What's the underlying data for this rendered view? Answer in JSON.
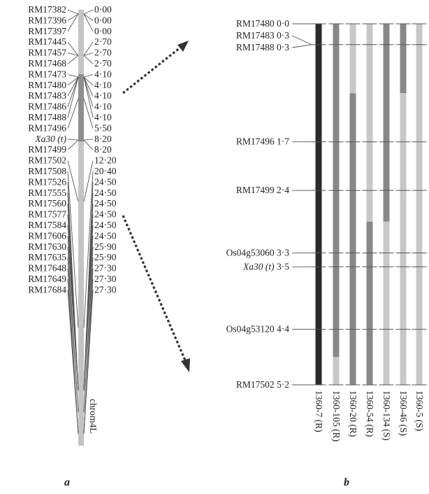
{
  "panel_a": {
    "letter": "a",
    "chrom_label": "chrom4L",
    "markers": [
      {
        "name": "RM17382",
        "pos": "0·00",
        "cm": 0.0
      },
      {
        "name": "RM17396",
        "pos": "0·00",
        "cm": 0.0
      },
      {
        "name": "RM17397",
        "pos": "0·00",
        "cm": 0.0
      },
      {
        "name": "RM17445",
        "pos": "2·70",
        "cm": 2.7
      },
      {
        "name": "RM17457",
        "pos": "2·70",
        "cm": 2.7
      },
      {
        "name": "RM17468",
        "pos": "2·70",
        "cm": 2.7
      },
      {
        "name": "RM17473",
        "pos": "4·10",
        "cm": 4.1
      },
      {
        "name": "RM17480",
        "pos": "4·10",
        "cm": 4.1
      },
      {
        "name": "RM17483",
        "pos": "4·10",
        "cm": 4.1
      },
      {
        "name": "RM17486",
        "pos": "4·10",
        "cm": 4.1
      },
      {
        "name": "RM17488",
        "pos": "4·10",
        "cm": 4.1
      },
      {
        "name": "RM17496",
        "pos": "5·50",
        "cm": 5.5
      },
      {
        "name": "Xa30 (t)",
        "pos": "8·20",
        "cm": 8.2,
        "italic": true
      },
      {
        "name": "RM17499",
        "pos": "8·20",
        "cm": 8.2
      },
      {
        "name": "RM17502",
        "pos": "12·20",
        "cm": 12.2
      },
      {
        "name": "RM17508",
        "pos": "20·40",
        "cm": 20.4
      },
      {
        "name": "RM17526",
        "pos": "24·50",
        "cm": 24.5
      },
      {
        "name": "RM17555",
        "pos": "24·50",
        "cm": 24.5
      },
      {
        "name": "RM17560",
        "pos": "24·50",
        "cm": 24.5
      },
      {
        "name": "RM17577",
        "pos": "24·50",
        "cm": 24.5
      },
      {
        "name": "RM17584",
        "pos": "24·50",
        "cm": 24.5
      },
      {
        "name": "RM17606",
        "pos": "24·50",
        "cm": 24.5
      },
      {
        "name": "RM17630",
        "pos": "25·90",
        "cm": 25.9
      },
      {
        "name": "RM17635",
        "pos": "25·90",
        "cm": 25.9
      },
      {
        "name": "RM17648",
        "pos": "27·30",
        "cm": 27.3
      },
      {
        "name": "RM17649",
        "pos": "27·30",
        "cm": 27.3
      },
      {
        "name": "RM17684",
        "pos": "27·30",
        "cm": 27.3
      }
    ],
    "highlight_range_cm": [
      4.1,
      8.2
    ]
  },
  "panel_b": {
    "letter": "b",
    "markers": [
      {
        "name": "RM17480",
        "pos": "0·0",
        "cm": 0.0
      },
      {
        "name": "RM17483",
        "pos": "0·3",
        "cm": 0.3
      },
      {
        "name": "RM17488",
        "pos": "0·3",
        "cm": 0.3
      },
      {
        "name": "RM17496",
        "pos": "1·7",
        "cm": 1.7
      },
      {
        "name": "RM17499",
        "pos": "2·4",
        "cm": 2.4
      },
      {
        "name": "Os04g53060",
        "pos": "3·3",
        "cm": 3.3
      },
      {
        "name": "Xa30 (t)",
        "pos": "3·5",
        "cm": 3.5,
        "italic": true
      },
      {
        "name": "Os04g53120",
        "pos": "4·4",
        "cm": 4.4
      },
      {
        "name": "RM17502",
        "pos": "5·2",
        "cm": 5.2
      }
    ],
    "lines": [
      {
        "label": "1360-7 (R)",
        "segments": [
          {
            "from": 0.0,
            "to": 5.2,
            "tone": "black"
          }
        ]
      },
      {
        "label": "1360-105 (R)",
        "segments": [
          {
            "from": 0.0,
            "to": 4.8,
            "tone": "dark"
          },
          {
            "from": 4.8,
            "to": 5.2,
            "tone": "light"
          }
        ]
      },
      {
        "label": "1360-20 (R)",
        "segments": [
          {
            "from": 0.0,
            "to": 1.0,
            "tone": "light"
          },
          {
            "from": 1.0,
            "to": 5.2,
            "tone": "dark"
          }
        ]
      },
      {
        "label": "1360-54 (R)",
        "segments": [
          {
            "from": 0.0,
            "to": 2.85,
            "tone": "light"
          },
          {
            "from": 2.85,
            "to": 5.2,
            "tone": "dark"
          }
        ]
      },
      {
        "label": "1360-134 (S)",
        "segments": [
          {
            "from": 0.0,
            "to": 2.85,
            "tone": "dark"
          },
          {
            "from": 2.85,
            "to": 5.2,
            "tone": "light"
          }
        ]
      },
      {
        "label": "1360-46 (S)",
        "segments": [
          {
            "from": 0.0,
            "to": 1.0,
            "tone": "dark"
          },
          {
            "from": 1.0,
            "to": 5.2,
            "tone": "light"
          }
        ]
      },
      {
        "label": "1360-5 (S)",
        "segments": [
          {
            "from": 0.0,
            "to": 5.2,
            "tone": "light"
          }
        ]
      }
    ]
  },
  "colors": {
    "black": "#2b2b2b",
    "dark": "#888888",
    "light": "#c8c8c8",
    "chromosome": "#c4c4c4",
    "highlight": "#8e8e8e",
    "tick": "#555555",
    "arrow": "#333333"
  }
}
